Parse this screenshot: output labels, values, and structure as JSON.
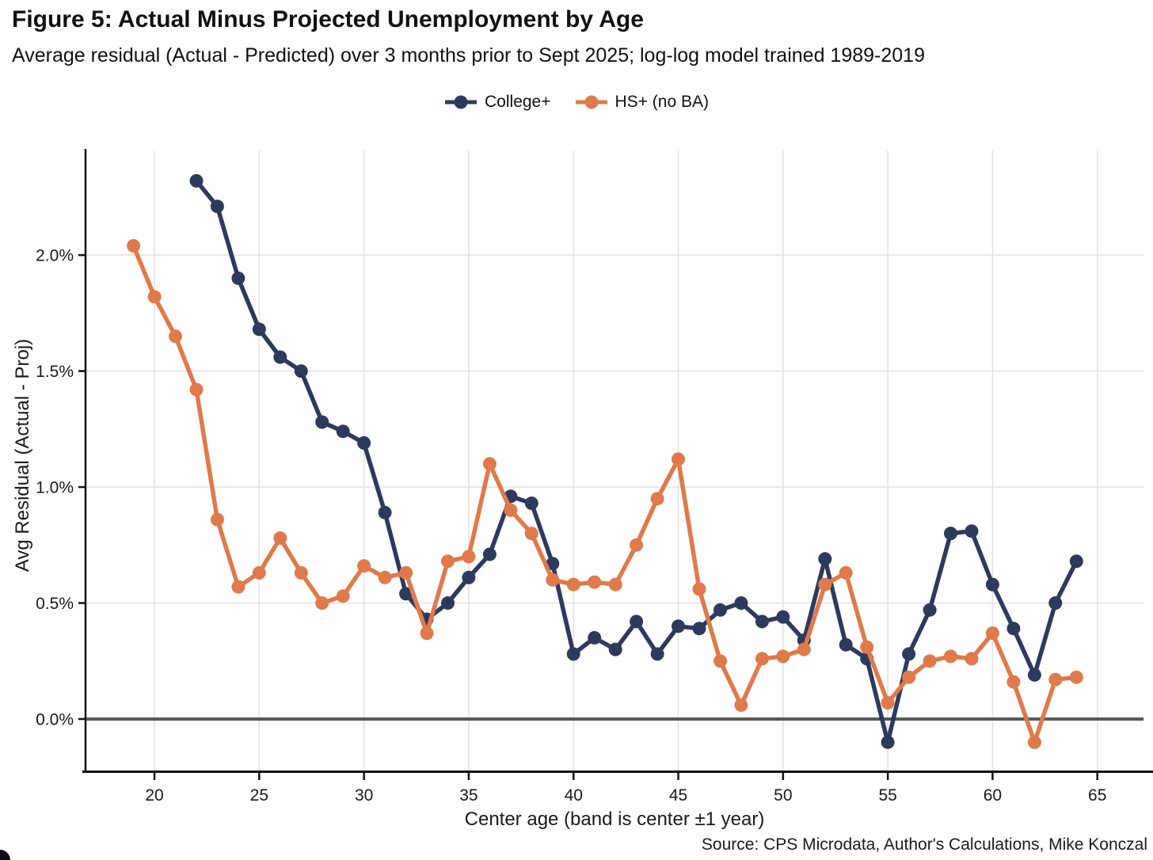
{
  "header": {
    "title": "Figure 5: Actual Minus Projected Unemployment by Age",
    "subtitle": "Average residual (Actual - Predicted) over 3 months prior to Sept 2025; log-log model trained 1989-2019"
  },
  "footer": {
    "source": "Source: CPS Microdata, Author's Calculations, Mike Konczal"
  },
  "colors": {
    "college": "#2d3a5e",
    "hs": "#e07a4a",
    "gridline": "#e3e3e3",
    "zero_line": "#58585a",
    "axis_line": "#111111",
    "tick_text": "#1a1a1a"
  },
  "chart_data": {
    "type": "line",
    "title": "Figure 5: Actual Minus Projected Unemployment by Age",
    "subtitle": "Average residual (Actual - Predicted) over 3 months prior to Sept 2025; log-log model trained 1989-2019",
    "xlabel": "Center age (band is center ±1 year)",
    "ylabel": "Avg Residual (Actual - Proj)",
    "legend_position": "top",
    "grid": true,
    "xlim": [
      16.71,
      67.24
    ],
    "ylim": [
      -0.222,
      2.451
    ],
    "zero_line": 0,
    "x_ticks": [
      20,
      25,
      30,
      35,
      40,
      45,
      50,
      55,
      60,
      65
    ],
    "y_ticks": [
      {
        "v": 0.0,
        "label": "0.0%"
      },
      {
        "v": 0.5,
        "label": "0.5%"
      },
      {
        "v": 1.0,
        "label": "1.0%"
      },
      {
        "v": 1.5,
        "label": "1.5%"
      },
      {
        "v": 2.0,
        "label": "2.0%"
      }
    ],
    "series": [
      {
        "name": "College+",
        "color": "#2d3a5e",
        "x": [
          22,
          23,
          24,
          25,
          26,
          27,
          28,
          29,
          30,
          31,
          32,
          33,
          34,
          35,
          36,
          37,
          38,
          39,
          40,
          41,
          42,
          43,
          44,
          45,
          46,
          47,
          48,
          49,
          50,
          51,
          52,
          53,
          54,
          55,
          56,
          57,
          58,
          59,
          60,
          61,
          62,
          63,
          64
        ],
        "y": [
          2.32,
          2.21,
          1.9,
          1.68,
          1.56,
          1.5,
          1.28,
          1.24,
          1.19,
          0.89,
          0.54,
          0.43,
          0.5,
          0.61,
          0.71,
          0.96,
          0.93,
          0.67,
          0.28,
          0.35,
          0.3,
          0.42,
          0.28,
          0.4,
          0.39,
          0.47,
          0.5,
          0.42,
          0.44,
          0.34,
          0.69,
          0.32,
          0.26,
          -0.1,
          0.28,
          0.47,
          0.8,
          0.81,
          0.58,
          0.39,
          0.19,
          0.5,
          0.68
        ]
      },
      {
        "name": "HS+ (no BA)",
        "color": "#e07a4a",
        "x": [
          19,
          20,
          21,
          22,
          23,
          24,
          25,
          26,
          27,
          28,
          29,
          30,
          31,
          32,
          33,
          34,
          35,
          36,
          37,
          38,
          39,
          40,
          41,
          42,
          43,
          44,
          45,
          46,
          47,
          48,
          49,
          50,
          51,
          52,
          53,
          54,
          55,
          56,
          57,
          58,
          59,
          60,
          61,
          62,
          63,
          64
        ],
        "y": [
          2.04,
          1.82,
          1.65,
          1.42,
          0.86,
          0.57,
          0.63,
          0.78,
          0.63,
          0.5,
          0.53,
          0.66,
          0.61,
          0.63,
          0.37,
          0.68,
          0.7,
          1.1,
          0.9,
          0.8,
          0.6,
          0.58,
          0.59,
          0.58,
          0.75,
          0.95,
          1.12,
          0.56,
          0.25,
          0.06,
          0.26,
          0.27,
          0.3,
          0.58,
          0.63,
          0.31,
          0.07,
          0.18,
          0.25,
          0.27,
          0.26,
          0.37,
          0.16,
          -0.1,
          0.17,
          0.18
        ]
      }
    ]
  }
}
